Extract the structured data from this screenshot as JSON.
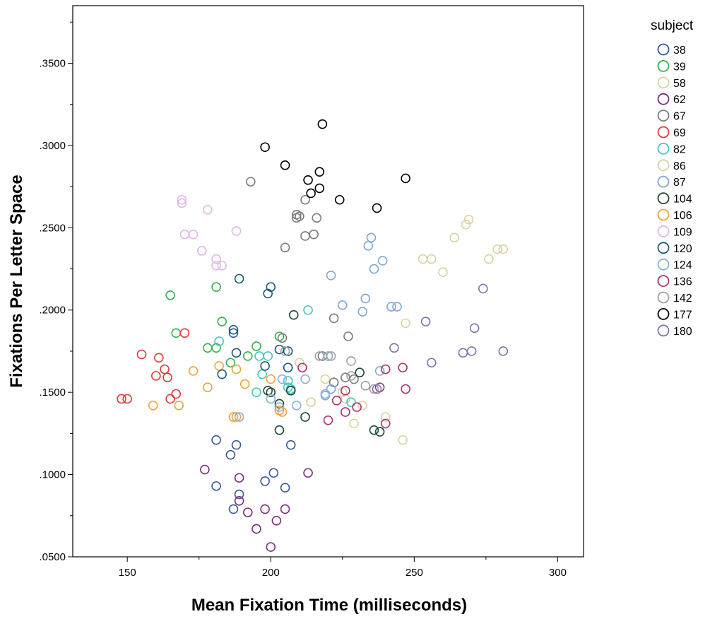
{
  "chart_data": {
    "type": "scatter",
    "xlabel": "Mean Fixation Time (milliseconds)",
    "ylabel": "Fixations Per Letter Space",
    "xlim": [
      131,
      309
    ],
    "ylim": [
      0.05,
      0.385
    ],
    "x_ticks": [
      150,
      200,
      250,
      300
    ],
    "x_tick_labels": [
      "150",
      "200",
      "250",
      "300"
    ],
    "y_ticks": [
      0.05,
      0.1,
      0.15,
      0.2,
      0.25,
      0.3,
      0.35
    ],
    "y_tick_labels": [
      ".0500",
      ".1000",
      ".1500",
      ".2000",
      ".2500",
      ".3000",
      ".3500"
    ],
    "grid": false,
    "legend": {
      "title": "subject",
      "placement": "right"
    },
    "series": [
      {
        "name": "38",
        "color": "#3a5aa0",
        "points": [
          [
            181,
            0.121
          ],
          [
            188,
            0.118
          ],
          [
            186,
            0.112
          ],
          [
            181,
            0.093
          ],
          [
            189,
            0.088
          ],
          [
            187,
            0.079
          ],
          [
            198,
            0.096
          ],
          [
            201,
            0.101
          ],
          [
            205,
            0.092
          ],
          [
            187,
            0.186
          ],
          [
            207,
            0.118
          ]
        ]
      },
      {
        "name": "39",
        "color": "#33b34a",
        "points": [
          [
            165,
            0.209
          ],
          [
            181,
            0.214
          ],
          [
            167,
            0.186
          ],
          [
            178,
            0.177
          ],
          [
            181,
            0.177
          ],
          [
            183,
            0.193
          ],
          [
            186,
            0.168
          ],
          [
            192,
            0.172
          ],
          [
            195,
            0.178
          ],
          [
            203,
            0.184
          ]
        ]
      },
      {
        "name": "58",
        "color": "#d8d39f",
        "points": [
          [
            210,
            0.168
          ],
          [
            214,
            0.144
          ],
          [
            219,
            0.158
          ],
          [
            226,
            0.146
          ],
          [
            229,
            0.131
          ],
          [
            232,
            0.142
          ],
          [
            240,
            0.135
          ],
          [
            246,
            0.121
          ],
          [
            247,
            0.192
          ],
          [
            225,
            0.15
          ]
        ]
      },
      {
        "name": "62",
        "color": "#7b2f7c",
        "points": [
          [
            177,
            0.103
          ],
          [
            189,
            0.098
          ],
          [
            189,
            0.084
          ],
          [
            192,
            0.077
          ],
          [
            195,
            0.067
          ],
          [
            198,
            0.079
          ],
          [
            202,
            0.072
          ],
          [
            205,
            0.079
          ],
          [
            200,
            0.056
          ],
          [
            213,
            0.101
          ]
        ]
      },
      {
        "name": "67",
        "color": "#7d7d7d",
        "points": [
          [
            193,
            0.278
          ],
          [
            212,
            0.267
          ],
          [
            209,
            0.258
          ],
          [
            210,
            0.257
          ],
          [
            209,
            0.256
          ],
          [
            216,
            0.256
          ],
          [
            215,
            0.246
          ],
          [
            212,
            0.245
          ],
          [
            205,
            0.238
          ],
          [
            222,
            0.195
          ],
          [
            227,
            0.184
          ],
          [
            218,
            0.172
          ],
          [
            226,
            0.159
          ],
          [
            229,
            0.158
          ],
          [
            222,
            0.156
          ],
          [
            204,
            0.183
          ]
        ]
      },
      {
        "name": "69",
        "color": "#e03c3c",
        "points": [
          [
            148,
            0.146
          ],
          [
            150,
            0.146
          ],
          [
            155,
            0.173
          ],
          [
            160,
            0.16
          ],
          [
            161,
            0.171
          ],
          [
            163,
            0.164
          ],
          [
            164,
            0.159
          ],
          [
            165,
            0.146
          ],
          [
            167,
            0.149
          ],
          [
            170,
            0.186
          ]
        ]
      },
      {
        "name": "82",
        "color": "#45c6c0",
        "points": [
          [
            182,
            0.181
          ],
          [
            196,
            0.172
          ],
          [
            197,
            0.161
          ],
          [
            199,
            0.172
          ],
          [
            195,
            0.15
          ],
          [
            206,
            0.157
          ],
          [
            206,
            0.153
          ],
          [
            207,
            0.152
          ],
          [
            213,
            0.2
          ],
          [
            228,
            0.144
          ]
        ]
      },
      {
        "name": "86",
        "color": "#d8d39f",
        "points": [
          [
            253,
            0.231
          ],
          [
            256,
            0.231
          ],
          [
            260,
            0.223
          ],
          [
            264,
            0.244
          ],
          [
            268,
            0.252
          ],
          [
            269,
            0.255
          ],
          [
            276,
            0.231
          ],
          [
            279,
            0.237
          ],
          [
            281,
            0.237
          ]
        ]
      },
      {
        "name": "87",
        "color": "#7fa8d2",
        "points": [
          [
            221,
            0.221
          ],
          [
            225,
            0.203
          ],
          [
            234,
            0.239
          ],
          [
            235,
            0.244
          ],
          [
            236,
            0.225
          ],
          [
            239,
            0.23
          ],
          [
            233,
            0.207
          ],
          [
            232,
            0.199
          ],
          [
            242,
            0.202
          ],
          [
            244,
            0.202
          ],
          [
            238,
            0.163
          ],
          [
            220,
            0.172
          ],
          [
            219,
            0.148
          ],
          [
            221,
            0.152
          ]
        ]
      },
      {
        "name": "104",
        "color": "#1d4a32",
        "points": [
          [
            208,
            0.197
          ],
          [
            199,
            0.151
          ],
          [
            200,
            0.15
          ],
          [
            203,
            0.143
          ],
          [
            207,
            0.151
          ],
          [
            212,
            0.135
          ],
          [
            203,
            0.127
          ],
          [
            231,
            0.162
          ],
          [
            236,
            0.127
          ],
          [
            238,
            0.126
          ]
        ]
      },
      {
        "name": "106",
        "color": "#f0a33a",
        "points": [
          [
            159,
            0.142
          ],
          [
            168,
            0.142
          ],
          [
            173,
            0.163
          ],
          [
            178,
            0.153
          ],
          [
            182,
            0.166
          ],
          [
            188,
            0.164
          ],
          [
            191,
            0.155
          ],
          [
            187,
            0.135
          ],
          [
            188,
            0.135
          ],
          [
            200,
            0.158
          ],
          [
            203,
            0.139
          ],
          [
            204,
            0.138
          ]
        ]
      },
      {
        "name": "109",
        "color": "#e0b6ea",
        "points": [
          [
            169,
            0.267
          ],
          [
            169,
            0.265
          ],
          [
            178,
            0.261
          ],
          [
            170,
            0.246
          ],
          [
            173,
            0.246
          ],
          [
            176,
            0.236
          ],
          [
            181,
            0.231
          ],
          [
            181,
            0.227
          ],
          [
            183,
            0.227
          ],
          [
            188,
            0.248
          ]
        ]
      },
      {
        "name": "120",
        "color": "#1f5a75",
        "points": [
          [
            189,
            0.219
          ],
          [
            199,
            0.21
          ],
          [
            200,
            0.214
          ],
          [
            187,
            0.188
          ],
          [
            183,
            0.161
          ],
          [
            188,
            0.174
          ],
          [
            198,
            0.166
          ],
          [
            203,
            0.176
          ],
          [
            206,
            0.175
          ],
          [
            206,
            0.165
          ]
        ]
      },
      {
        "name": "124",
        "color": "#8ab0d6",
        "points": [
          [
            200,
            0.146
          ],
          [
            204,
            0.158
          ],
          [
            203,
            0.141
          ],
          [
            209,
            0.142
          ],
          [
            212,
            0.158
          ],
          [
            189,
            0.135
          ],
          [
            219,
            0.149
          ]
        ]
      },
      {
        "name": "136",
        "color": "#b0326e",
        "points": [
          [
            211,
            0.165
          ],
          [
            220,
            0.133
          ],
          [
            223,
            0.145
          ],
          [
            226,
            0.151
          ],
          [
            226,
            0.138
          ],
          [
            230,
            0.141
          ],
          [
            240,
            0.131
          ],
          [
            240,
            0.164
          ],
          [
            246,
            0.165
          ],
          [
            247,
            0.152
          ],
          [
            238,
            0.153
          ]
        ]
      },
      {
        "name": "142",
        "color": "#a0a0a0",
        "points": [
          [
            217,
            0.172
          ],
          [
            221,
            0.172
          ],
          [
            228,
            0.169
          ],
          [
            233,
            0.154
          ],
          [
            236,
            0.152
          ],
          [
            205,
            0.175
          ],
          [
            228,
            0.16
          ]
        ]
      },
      {
        "name": "177",
        "color": "#000000",
        "points": [
          [
            218,
            0.313
          ],
          [
            198,
            0.299
          ],
          [
            205,
            0.288
          ],
          [
            213,
            0.279
          ],
          [
            217,
            0.284
          ],
          [
            214,
            0.271
          ],
          [
            217,
            0.274
          ],
          [
            224,
            0.267
          ],
          [
            237,
            0.262
          ],
          [
            247,
            0.28
          ]
        ]
      },
      {
        "name": "180",
        "color": "#7878ad",
        "points": [
          [
            274,
            0.213
          ],
          [
            254,
            0.193
          ],
          [
            271,
            0.189
          ],
          [
            243,
            0.177
          ],
          [
            256,
            0.168
          ],
          [
            267,
            0.174
          ],
          [
            270,
            0.175
          ],
          [
            281,
            0.175
          ],
          [
            237,
            0.152
          ]
        ]
      }
    ]
  }
}
